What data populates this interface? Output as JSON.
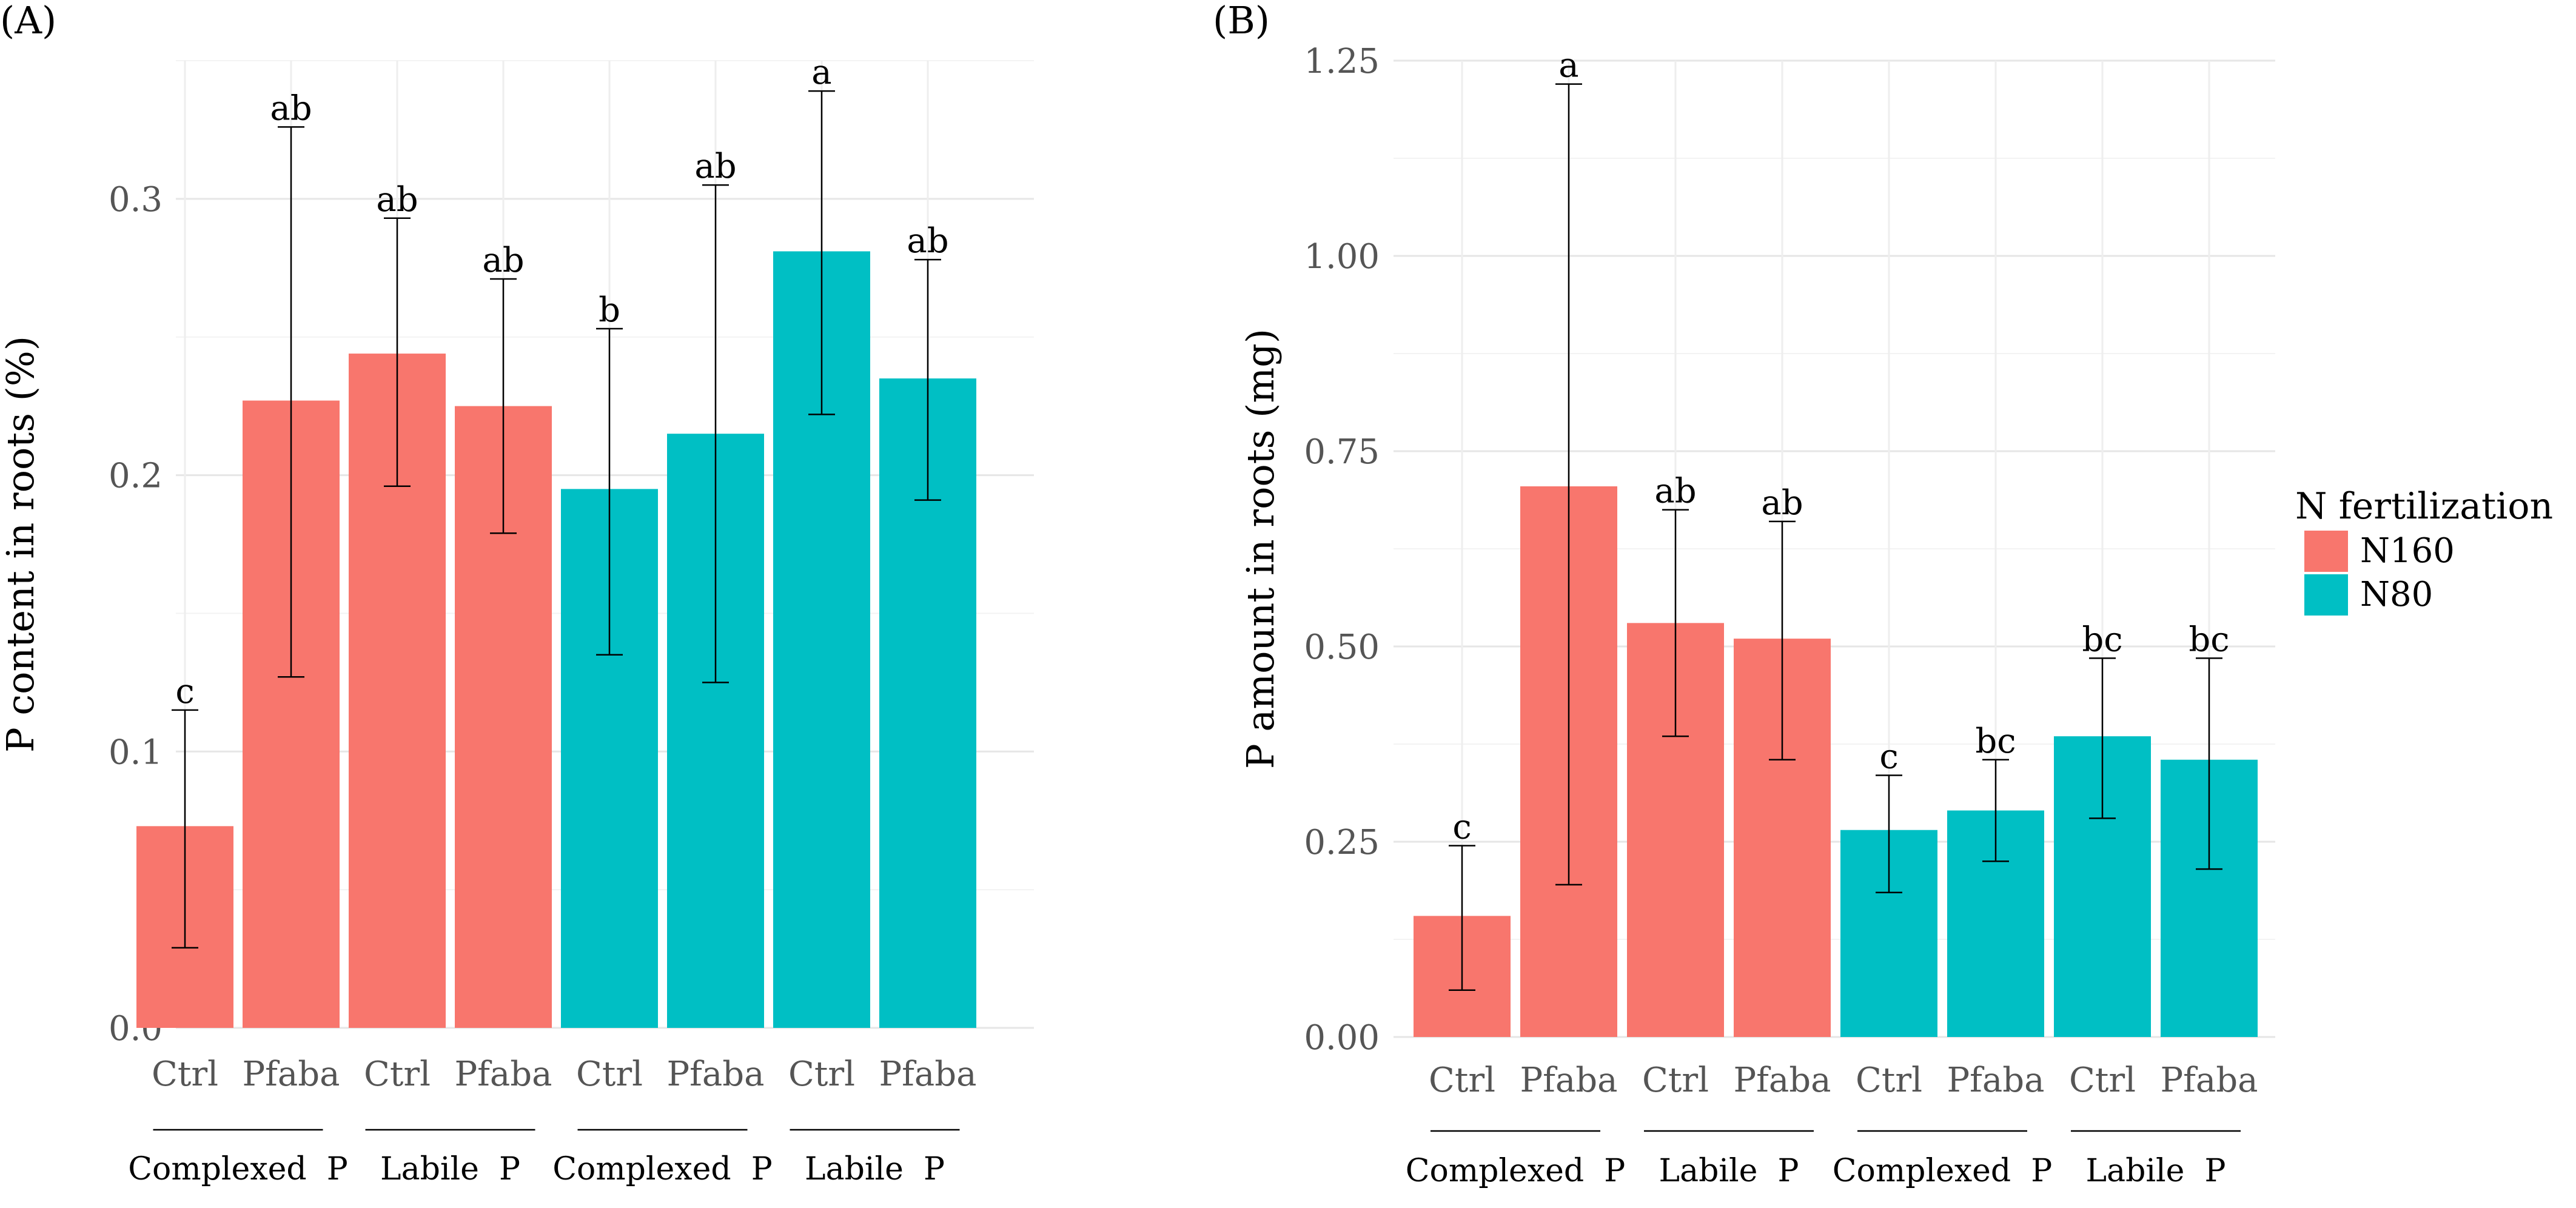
{
  "legend": {
    "title": "N fertilization",
    "items": [
      {
        "label": "N160",
        "color": "#F8766D"
      },
      {
        "label": "N80",
        "color": "#00BFC4"
      }
    ]
  },
  "chart_data": [
    {
      "panel_label": "(A)",
      "type": "bar",
      "ylabel": "P content in roots (%)",
      "ylim": [
        0,
        0.35
      ],
      "yticks": [
        0.0,
        0.1,
        0.2,
        0.3
      ],
      "ytick_labels": [
        "0.0",
        "0.1",
        "0.2",
        "0.3"
      ],
      "categories": [
        "Ctrl",
        "Pfaba",
        "Ctrl",
        "Pfaba",
        "Ctrl",
        "Pfaba",
        "Ctrl",
        "Pfaba"
      ],
      "groups": [
        "Complexed  P",
        "Labile  P",
        "Complexed  P",
        "Labile  P"
      ],
      "series_of_bar": [
        "N160",
        "N160",
        "N160",
        "N160",
        "N80",
        "N80",
        "N80",
        "N80"
      ],
      "values": [
        0.073,
        0.227,
        0.244,
        0.225,
        0.195,
        0.215,
        0.281,
        0.235
      ],
      "err_low": [
        0.029,
        0.127,
        0.196,
        0.179,
        0.135,
        0.125,
        0.222,
        0.191
      ],
      "err_high": [
        0.115,
        0.326,
        0.293,
        0.271,
        0.253,
        0.305,
        0.339,
        0.278
      ],
      "letters": [
        "c",
        "ab",
        "ab",
        "ab",
        "b",
        "ab",
        "a",
        "ab"
      ]
    },
    {
      "panel_label": "(B)",
      "type": "bar",
      "ylabel": "P amount in roots (mg)",
      "ylim": [
        0,
        1.25
      ],
      "yticks": [
        0.0,
        0.25,
        0.5,
        0.75,
        1.0,
        1.25
      ],
      "ytick_labels": [
        "0.00",
        "0.25",
        "0.50",
        "0.75",
        "1.00",
        "1.25"
      ],
      "categories": [
        "Ctrl",
        "Pfaba",
        "Ctrl",
        "Pfaba",
        "Ctrl",
        "Pfaba",
        "Ctrl",
        "Pfaba"
      ],
      "groups": [
        "Complexed  P",
        "Labile  P",
        "Complexed  P",
        "Labile  P"
      ],
      "series_of_bar": [
        "N160",
        "N160",
        "N160",
        "N160",
        "N80",
        "N80",
        "N80",
        "N80"
      ],
      "values": [
        0.155,
        0.705,
        0.53,
        0.51,
        0.265,
        0.29,
        0.385,
        0.355
      ],
      "err_low": [
        0.06,
        0.195,
        0.385,
        0.355,
        0.185,
        0.225,
        0.28,
        0.215
      ],
      "err_high": [
        0.245,
        1.22,
        0.675,
        0.66,
        0.335,
        0.355,
        0.485,
        0.485
      ],
      "letters": [
        "c",
        "a",
        "ab",
        "ab",
        "c",
        "bc",
        "bc",
        "bc"
      ]
    }
  ]
}
